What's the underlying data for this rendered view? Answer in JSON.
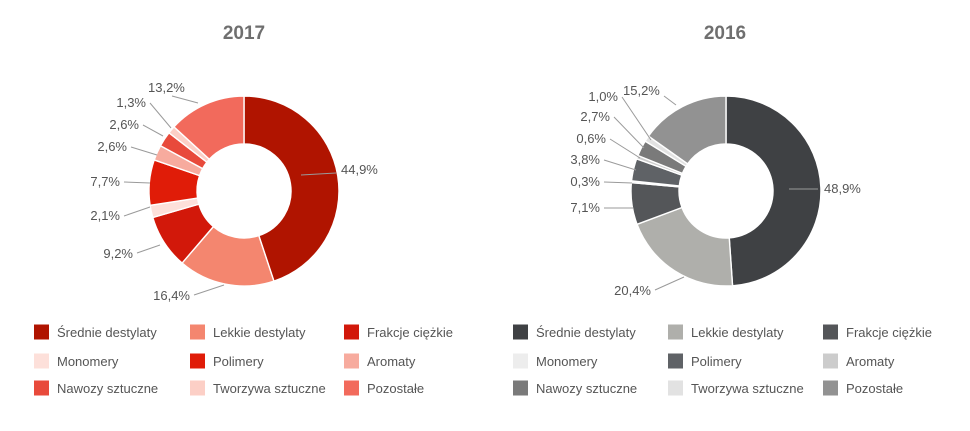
{
  "chart_data": [
    {
      "type": "pie",
      "style": "donut",
      "title": "2017",
      "categories": [
        "Średnie destylaty",
        "Lekkie destylaty",
        "Frakcje ciężkie",
        "Monomery",
        "Polimery",
        "Aromaty",
        "Nawozy sztuczne",
        "Tworzywa sztuczne",
        "Pozostałe"
      ],
      "values": [
        44.9,
        16.4,
        9.2,
        2.1,
        7.7,
        2.6,
        2.6,
        1.3,
        13.2
      ],
      "labels": [
        "44,9%",
        "16,4%",
        "9,2%",
        "2,1%",
        "7,7%",
        "2,6%",
        "2,6%",
        "1,3%",
        "13,2%"
      ],
      "colors": [
        "#b01400",
        "#f4866f",
        "#d2180a",
        "#fde0da",
        "#e01c08",
        "#f7ab9e",
        "#e84a3b",
        "#fccfc6",
        "#f26a5c"
      ],
      "legend_placement": "bottom"
    },
    {
      "type": "pie",
      "style": "donut",
      "title": "2016",
      "categories": [
        "Średnie destylaty",
        "Lekkie destylaty",
        "Frakcje ciężkie",
        "Monomery",
        "Polimery",
        "Aromaty",
        "Nawozy sztuczne",
        "Tworzywa sztuczne",
        "Pozostałe"
      ],
      "values": [
        48.9,
        20.4,
        7.1,
        0.3,
        3.8,
        0.6,
        2.7,
        1.0,
        15.2
      ],
      "labels": [
        "48,9%",
        "20,4%",
        "7,1%",
        "0,3%",
        "3,8%",
        "0,6%",
        "2,7%",
        "1,0%",
        "15,2%"
      ],
      "colors": [
        "#3f4144",
        "#afafab",
        "#545659",
        "#ededed",
        "#5f6266",
        "#cccccc",
        "#7a7a7a",
        "#e2e2e2",
        "#929292"
      ],
      "legend_placement": "bottom"
    }
  ]
}
